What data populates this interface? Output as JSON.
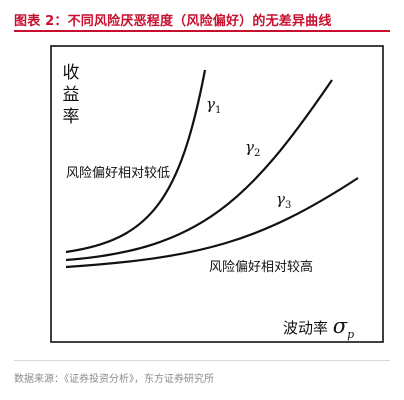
{
  "figure": {
    "title": "图表 2：不同风险厌恶程度（风险偏好）的无差异曲线"
  },
  "axes": {
    "ylabel_chars": [
      "收",
      "益",
      "率"
    ],
    "xlabel_text": "波动率",
    "xlabel_symbol": "σ",
    "xlabel_subscript": "p"
  },
  "curves": [
    {
      "symbol": "γ",
      "subscript": "1"
    },
    {
      "symbol": "γ",
      "subscript": "2"
    },
    {
      "symbol": "γ",
      "subscript": "3"
    }
  ],
  "annotations": {
    "low_risk_preference": "风险偏好相对较低",
    "high_risk_preference": "风险偏好相对较高"
  },
  "source": {
    "text": "数据来源：《证券投资分析》，东方证券研究所"
  },
  "colors": {
    "title": "#c8102e",
    "lines": "#111111",
    "source": "#8c8c8c"
  }
}
